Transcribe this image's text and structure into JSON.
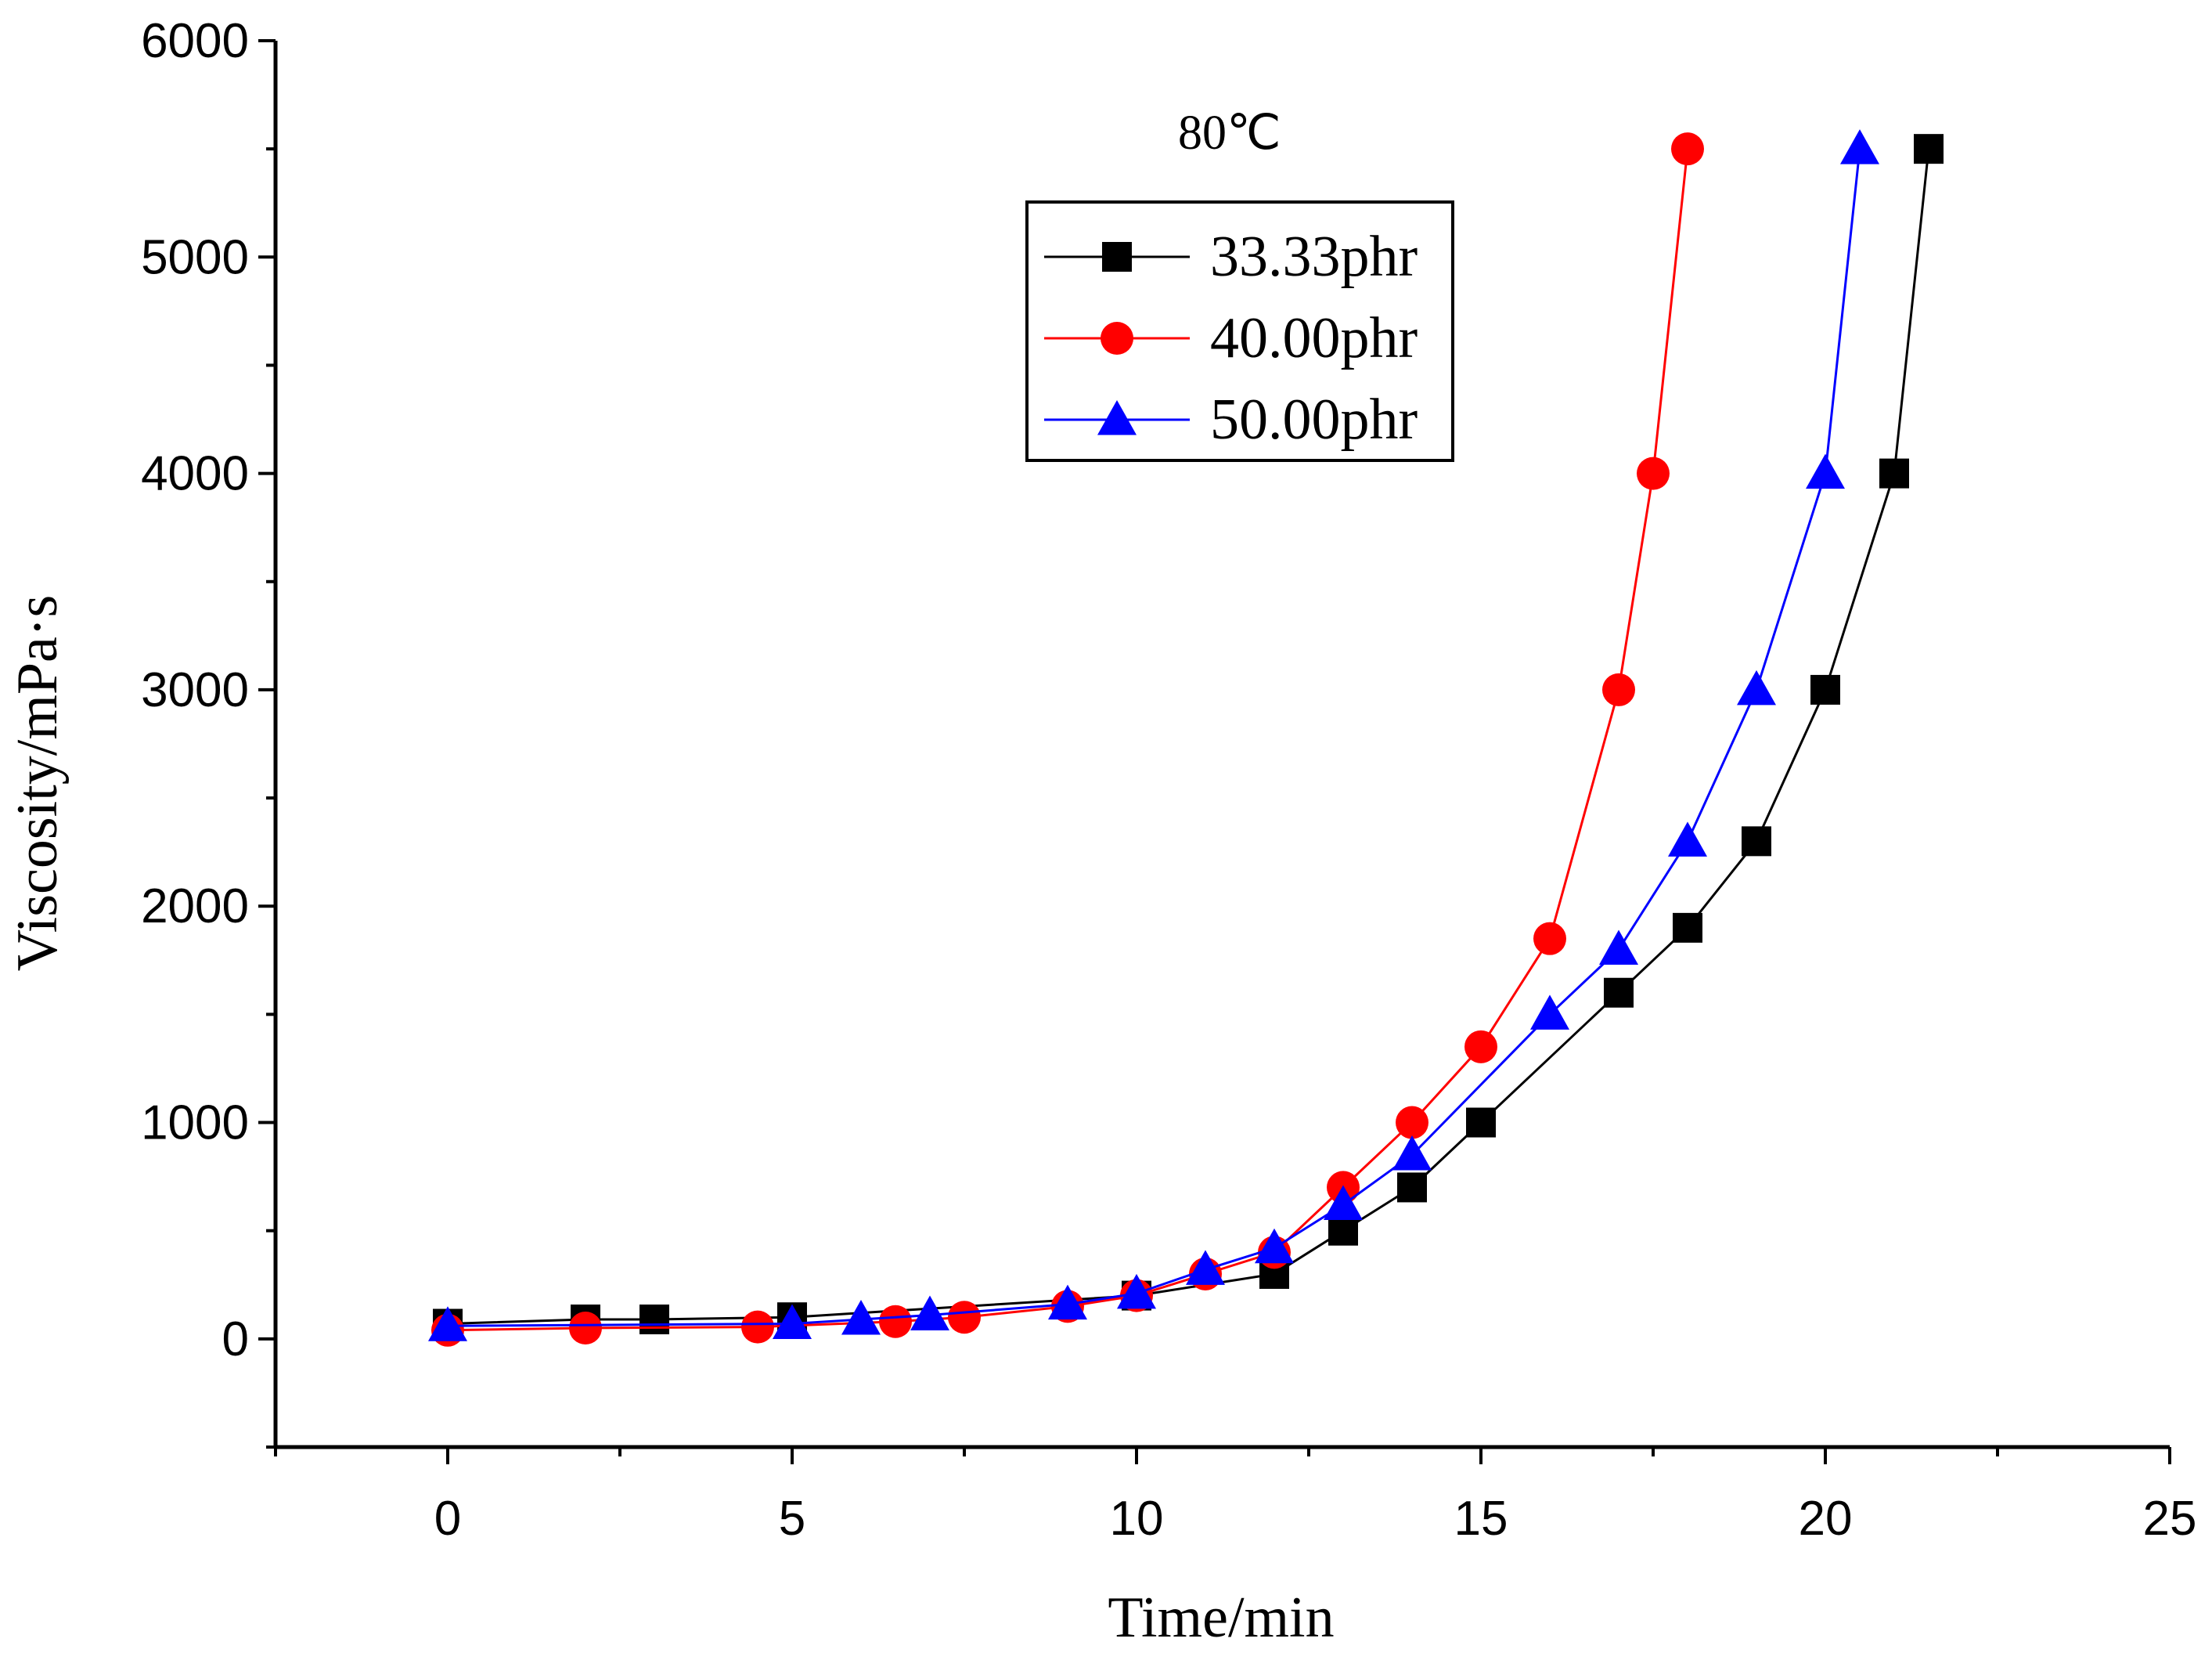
{
  "chart_data": {
    "type": "line",
    "title": "",
    "annotation": "80℃",
    "xlabel": "Time/min",
    "ylabel": "Viscosity/mPa·s",
    "xlim": [
      -2.5,
      25
    ],
    "ylim": [
      -500,
      6000
    ],
    "x_ticks": [
      0,
      5,
      10,
      15,
      20,
      25
    ],
    "y_ticks": [
      0,
      1000,
      2000,
      3000,
      4000,
      5000,
      6000
    ],
    "legend_position": "top-center",
    "grid": false,
    "series": [
      {
        "name": "33.33phr",
        "color": "#000000",
        "marker": "square",
        "x": [
          0,
          2,
          3,
          5,
          10,
          12,
          13,
          14,
          15,
          17,
          18,
          19,
          20,
          21,
          21.5
        ],
        "y": [
          70,
          90,
          90,
          100,
          200,
          300,
          500,
          700,
          1000,
          1600,
          1900,
          2300,
          3000,
          4000,
          5500
        ]
      },
      {
        "name": "40.00phr",
        "color": "#ff0000",
        "marker": "circle",
        "x": [
          0,
          2,
          4.5,
          6.5,
          7.5,
          9,
          10,
          11,
          12,
          13,
          14,
          15,
          16,
          17,
          17.5,
          18
        ],
        "y": [
          40,
          50,
          55,
          80,
          100,
          150,
          200,
          300,
          400,
          700,
          1000,
          1350,
          1850,
          3000,
          4000,
          5500
        ]
      },
      {
        "name": "50.00phr",
        "color": "#0000ff",
        "marker": "triangle",
        "x": [
          0,
          5,
          6,
          7,
          9,
          10,
          11,
          12,
          13,
          14,
          16,
          17,
          18,
          19,
          20,
          20.5
        ],
        "y": [
          60,
          70,
          90,
          110,
          160,
          210,
          320,
          420,
          620,
          850,
          1500,
          1800,
          2300,
          3000,
          4000,
          5500
        ]
      }
    ]
  }
}
